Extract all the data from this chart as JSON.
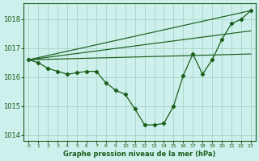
{
  "background_color": "#cdf0ec",
  "grid_color": "#aad8cc",
  "line_color": "#1a5e1a",
  "xlabel": "Graphe pression niveau de la mer (hPa)",
  "x_values": [
    0,
    1,
    2,
    3,
    4,
    5,
    6,
    7,
    8,
    9,
    10,
    11,
    12,
    13,
    14,
    15,
    16,
    17,
    18,
    19,
    20,
    21,
    22,
    23
  ],
  "y_main": [
    1016.6,
    1016.5,
    1016.3,
    1016.2,
    1016.1,
    1016.15,
    1016.2,
    1016.2,
    1015.8,
    1015.55,
    1015.4,
    1014.9,
    1014.35,
    1014.35,
    1014.4,
    1015.0,
    1016.05,
    1016.8,
    1016.1,
    1016.6,
    1017.3,
    1017.85,
    1018.0,
    1018.3
  ],
  "straight_lines": [
    {
      "x0": 0,
      "y0": 1016.6,
      "x1": 23,
      "y1": 1016.8
    },
    {
      "x0": 0,
      "y0": 1016.6,
      "x1": 23,
      "y1": 1017.6
    },
    {
      "x0": 0,
      "y0": 1016.6,
      "x1": 23,
      "y1": 1018.3
    }
  ],
  "ylim": [
    1013.8,
    1018.55
  ],
  "yticks": [
    1014,
    1015,
    1016,
    1017,
    1018
  ],
  "xlim": [
    -0.5,
    23.5
  ],
  "xtick_labels": [
    "0",
    "1",
    "2",
    "3",
    "4",
    "5",
    "6",
    "7",
    "8",
    "9",
    "10",
    "11",
    "12",
    "13",
    "14",
    "15",
    "16",
    "17",
    "18",
    "19",
    "20",
    "21",
    "22",
    "23"
  ],
  "figsize": [
    3.2,
    2.0
  ],
  "dpi": 100
}
